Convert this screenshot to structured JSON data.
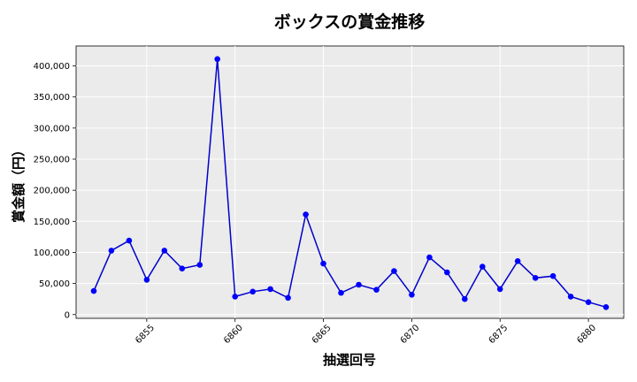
{
  "chart_data": {
    "type": "line",
    "title": "ボックスの賞金推移",
    "xlabel": "抽選回号",
    "ylabel": "賞金額（円）",
    "xlim": [
      6851.0,
      6882.0
    ],
    "ylim": [
      -6000,
      432000
    ],
    "x_ticks": [
      6855,
      6860,
      6865,
      6870,
      6875,
      6880
    ],
    "y_ticks": [
      0,
      50000,
      100000,
      150000,
      200000,
      250000,
      300000,
      350000,
      400000
    ],
    "y_tick_labels": [
      "0",
      "50,000",
      "100,000",
      "150,000",
      "200,000",
      "250,000",
      "300,000",
      "350,000",
      "400,000"
    ],
    "grid": true,
    "colors": {
      "line": "#0000cc",
      "marker": "#0000ff",
      "plot_bg": "#ebebeb",
      "grid": "#ffffff"
    },
    "series": [
      {
        "x": [
          6852,
          6853,
          6854,
          6855,
          6856,
          6857,
          6858,
          6859,
          6860,
          6861,
          6862,
          6863,
          6864,
          6865,
          6866,
          6867,
          6868,
          6869,
          6870,
          6871,
          6872,
          6873,
          6874,
          6875,
          6876,
          6877,
          6878,
          6879,
          6880,
          6881
        ],
        "values": [
          38000,
          103000,
          119000,
          56000,
          103000,
          74000,
          80000,
          411000,
          29000,
          37000,
          41000,
          27000,
          161000,
          82000,
          35000,
          48000,
          40000,
          70000,
          32000,
          92000,
          68000,
          25000,
          77000,
          41000,
          86000,
          59000,
          62000,
          29000,
          20000,
          12000
        ]
      }
    ]
  }
}
